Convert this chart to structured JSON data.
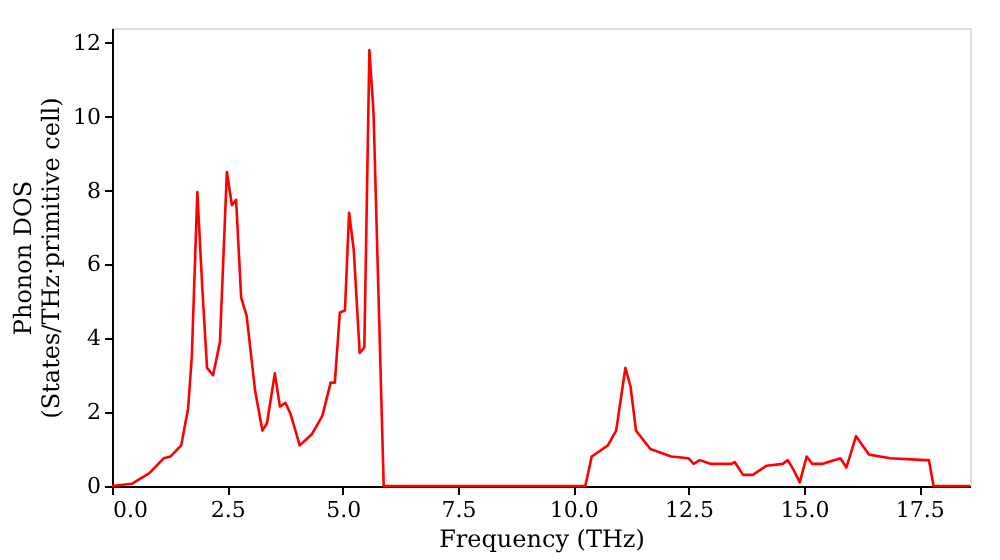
{
  "chart_data": {
    "type": "line",
    "xlabel": "Frequency (THz)",
    "ylabel": "Phonon DOS\n(States/THz·primitive cell)",
    "xlim": [
      0,
      18.6
    ],
    "ylim": [
      0,
      12.4
    ],
    "xticks": [
      {
        "value": 0,
        "label": "0.0"
      },
      {
        "value": 2.5,
        "label": "2.5"
      },
      {
        "value": 5,
        "label": "5.0"
      },
      {
        "value": 7.5,
        "label": "7.5"
      },
      {
        "value": 10,
        "label": "10.0"
      },
      {
        "value": 12.5,
        "label": "12.5"
      },
      {
        "value": 15,
        "label": "15.0"
      },
      {
        "value": 17.5,
        "label": "17.5"
      }
    ],
    "yticks": [
      0,
      2,
      4,
      6,
      8,
      10,
      12
    ],
    "grid": false,
    "line_style": "solid",
    "marker": "none",
    "x": [
      0,
      0.43,
      0.81,
      1.12,
      1.27,
      1.5,
      1.65,
      1.73,
      1.85,
      1.96,
      2.06,
      2.19,
      2.34,
      2.49,
      2.6,
      2.69,
      2.8,
      2.92,
      3.1,
      3.26,
      3.36,
      3.53,
      3.64,
      3.76,
      3.87,
      4.07,
      4.33,
      4.56,
      4.74,
      4.83,
      4.94,
      5.05,
      5.14,
      5.24,
      5.37,
      5.47,
      5.58,
      5.67,
      5.89,
      10.26,
      10.4,
      10.75,
      10.93,
      11.13,
      11.24,
      11.36,
      11.67,
      12.12,
      12.5,
      12.61,
      12.74,
      12.97,
      13.43,
      13.5,
      13.68,
      13.89,
      14.19,
      14.54,
      14.65,
      14.77,
      14.91,
      15.06,
      15.18,
      15.41,
      15.79,
      15.92,
      16.13,
      16.41,
      16.87,
      17.63,
      17.71,
      17.81,
      18.6
    ],
    "series": [
      {
        "color": "#ff0000",
        "values": [
          0,
          0.06,
          0.35,
          0.75,
          0.8,
          1.1,
          2.1,
          3.5,
          7.96,
          5.3,
          3.2,
          3.0,
          3.9,
          8.5,
          7.6,
          7.75,
          5.1,
          4.6,
          2.6,
          1.5,
          1.7,
          3.05,
          2.15,
          2.25,
          1.95,
          1.1,
          1.4,
          1.9,
          2.8,
          2.8,
          4.7,
          4.75,
          7.4,
          6.4,
          3.6,
          3.75,
          11.8,
          10.1,
          0,
          0,
          0.8,
          1.1,
          1.5,
          3.2,
          2.7,
          1.5,
          1.0,
          0.8,
          0.75,
          0.6,
          0.7,
          0.6,
          0.6,
          0.65,
          0.3,
          0.3,
          0.55,
          0.6,
          0.7,
          0.45,
          0.1,
          0.8,
          0.6,
          0.6,
          0.75,
          0.5,
          1.35,
          0.85,
          0.75,
          0.7,
          0.7,
          0,
          0
        ]
      }
    ]
  }
}
